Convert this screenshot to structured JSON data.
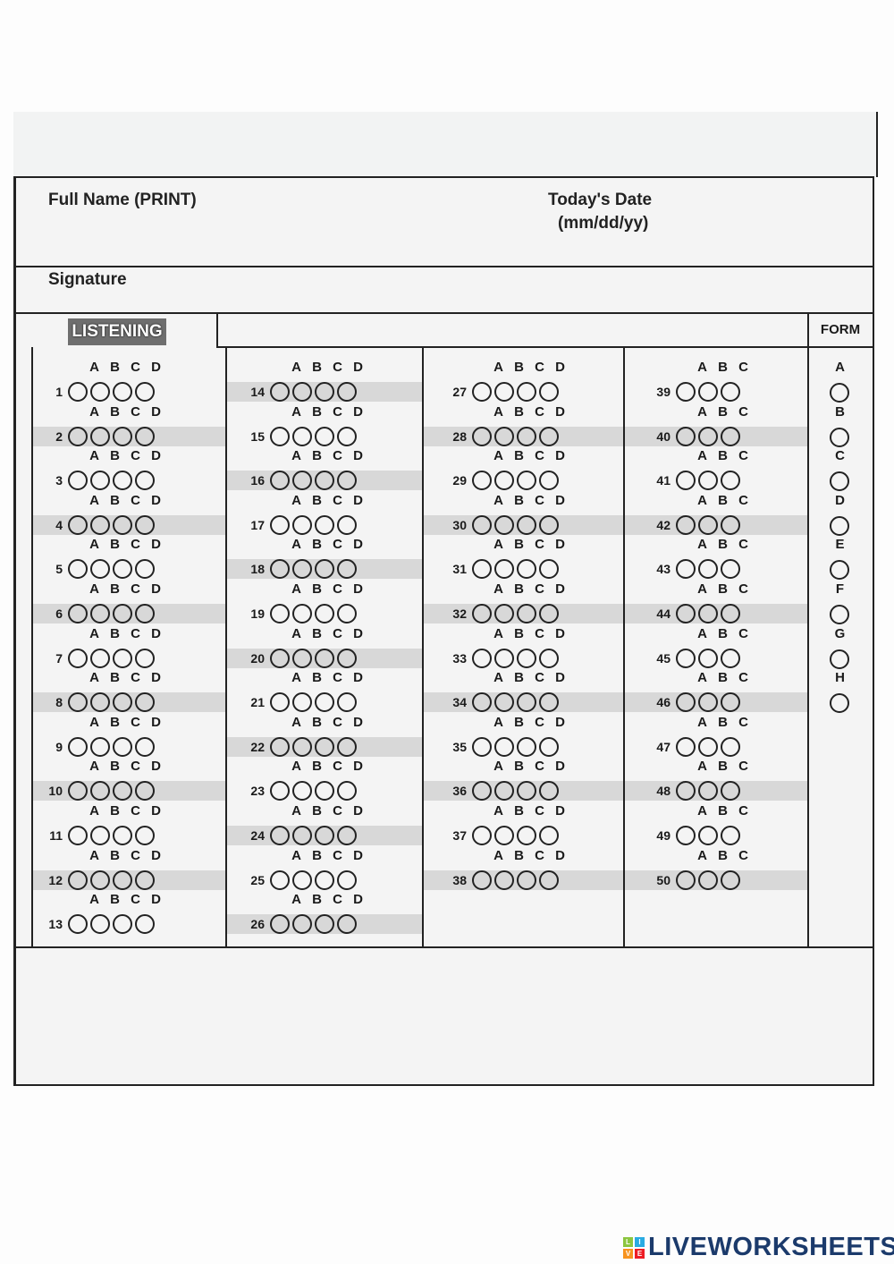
{
  "header": {
    "full_name_label": "Full Name  (PRINT)",
    "date_label": "Today's Date",
    "date_format": "(mm/dd/yy)",
    "signature_label": "Signature",
    "section_label": "LISTENING",
    "form_label": "FORM"
  },
  "answer_columns": [
    {
      "start": 1,
      "end": 13,
      "options": [
        "A",
        "B",
        "C",
        "D"
      ]
    },
    {
      "start": 14,
      "end": 26,
      "options": [
        "A",
        "B",
        "C",
        "D"
      ]
    },
    {
      "start": 27,
      "end": 38,
      "options": [
        "A",
        "B",
        "C",
        "D"
      ]
    },
    {
      "start": 39,
      "end": 50,
      "options": [
        "A",
        "B",
        "C"
      ]
    }
  ],
  "form_options": [
    "A",
    "B",
    "C",
    "D",
    "E",
    "F",
    "G",
    "H"
  ],
  "logo": {
    "text": "LIVEWORKSHEETS",
    "squares": [
      "L",
      "I",
      "V",
      "E"
    ],
    "colors": [
      "#8cc63f",
      "#29abe2",
      "#f7931e",
      "#ed1c24"
    ]
  },
  "colors": {
    "ink": "#222222",
    "shade": "#d8d8d8",
    "logo_text": "#1b3a6b"
  }
}
